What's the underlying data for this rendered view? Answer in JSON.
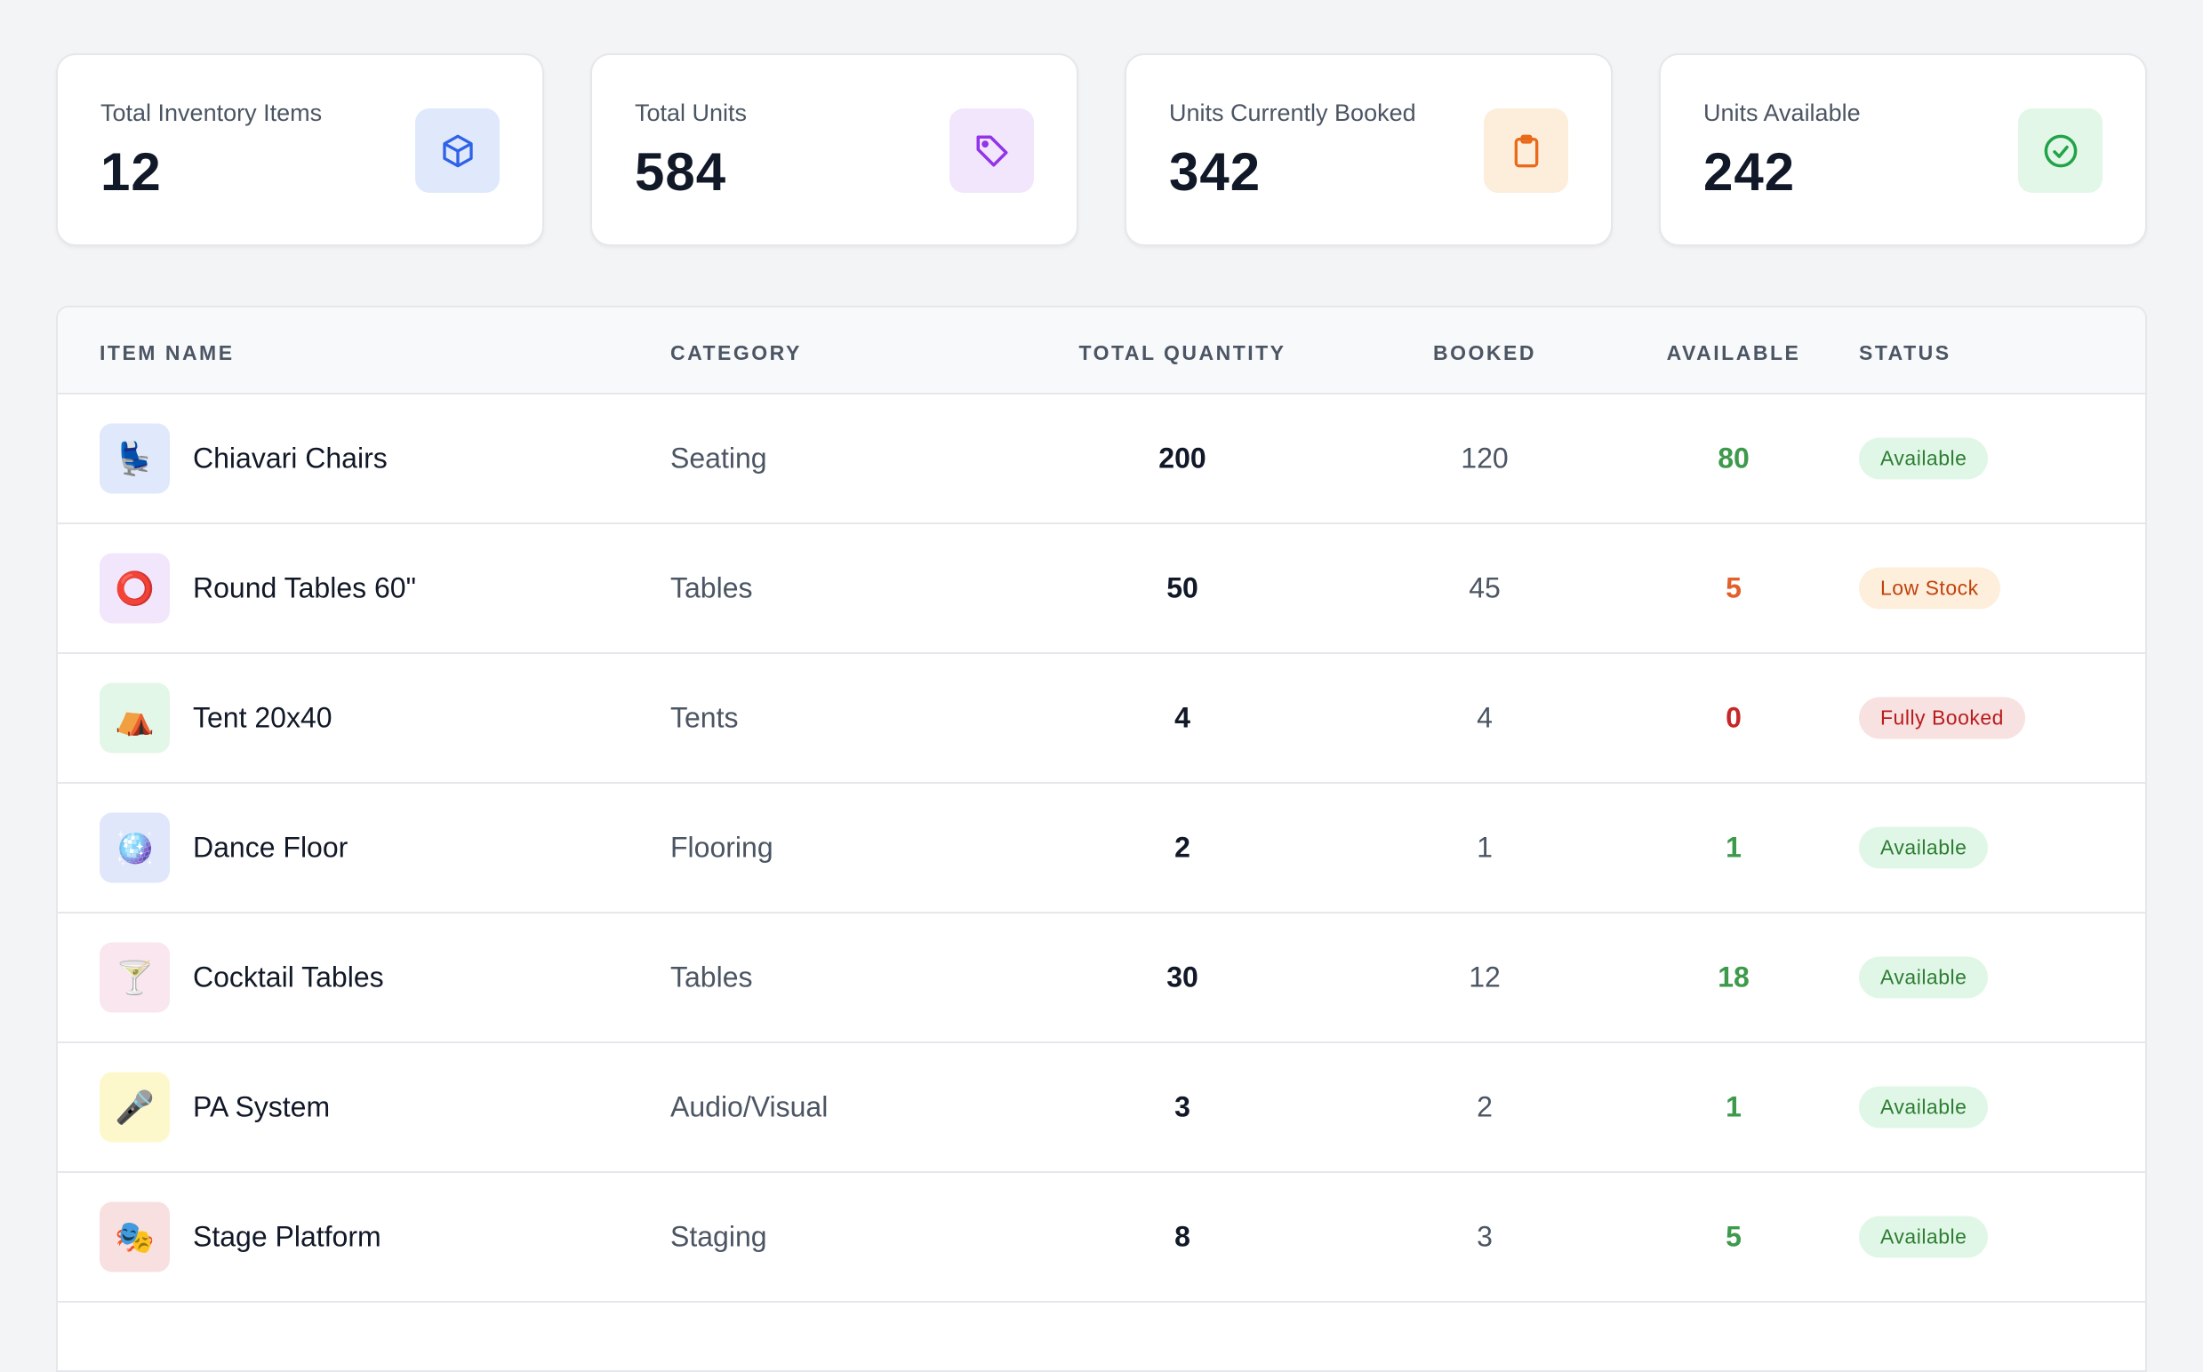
{
  "stats": [
    {
      "label": "Total Inventory Items",
      "value": "12",
      "icon": "cube-icon",
      "color": "#2f62e8",
      "bg": "#dfe9fb"
    },
    {
      "label": "Total Units",
      "value": "584",
      "icon": "tag-icon",
      "color": "#9333ea",
      "bg": "#f1e6fb"
    },
    {
      "label": "Units Currently Booked",
      "value": "342",
      "icon": "clipboard-icon",
      "color": "#ea6a1c",
      "bg": "#fdeedb"
    },
    {
      "label": "Units Available",
      "value": "242",
      "icon": "check-circle-icon",
      "color": "#22a34a",
      "bg": "#e2f7e7"
    }
  ],
  "table": {
    "headers": {
      "name": "ITEM NAME",
      "category": "CATEGORY",
      "total": "TOTAL QUANTITY",
      "booked": "BOOKED",
      "available": "AVAILABLE",
      "status": "STATUS"
    },
    "rows": [
      {
        "emoji": "💺",
        "icon_bg": "#dfe9fb",
        "name": "Chiavari Chairs",
        "category": "Seating",
        "total": "200",
        "booked": "120",
        "available": "80",
        "status": "Available"
      },
      {
        "emoji": "⭕",
        "icon_bg": "#f1e6fb",
        "name": "Round Tables 60\"",
        "category": "Tables",
        "total": "50",
        "booked": "45",
        "available": "5",
        "status": "Low Stock"
      },
      {
        "emoji": "⛺",
        "icon_bg": "#e2f7e7",
        "name": "Tent 20x40",
        "category": "Tents",
        "total": "4",
        "booked": "4",
        "available": "0",
        "status": "Fully Booked"
      },
      {
        "emoji": "🪩",
        "icon_bg": "#e0e7fb",
        "name": "Dance Floor",
        "category": "Flooring",
        "total": "2",
        "booked": "1",
        "available": "1",
        "status": "Available"
      },
      {
        "emoji": "🍸",
        "icon_bg": "#f9e6ef",
        "name": "Cocktail Tables",
        "category": "Tables",
        "total": "30",
        "booked": "12",
        "available": "18",
        "status": "Available"
      },
      {
        "emoji": "🎤",
        "icon_bg": "#fdf8cc",
        "name": "PA System",
        "category": "Audio/Visual",
        "total": "3",
        "booked": "2",
        "available": "1",
        "status": "Available"
      },
      {
        "emoji": "🎭",
        "icon_bg": "#f9e0e0",
        "name": "Stage Platform",
        "category": "Staging",
        "total": "8",
        "booked": "3",
        "available": "5",
        "status": "Available"
      }
    ]
  },
  "status_styles": {
    "Available": {
      "bg": "#e0f7e7",
      "fg": "#2e7d32",
      "avail": "#3d9a4b"
    },
    "Low Stock": {
      "bg": "#fdefdc",
      "fg": "#c2410c",
      "avail": "#e0612a"
    },
    "Fully Booked": {
      "bg": "#f8e1e1",
      "fg": "#b91c1c",
      "avail": "#c62828"
    }
  }
}
